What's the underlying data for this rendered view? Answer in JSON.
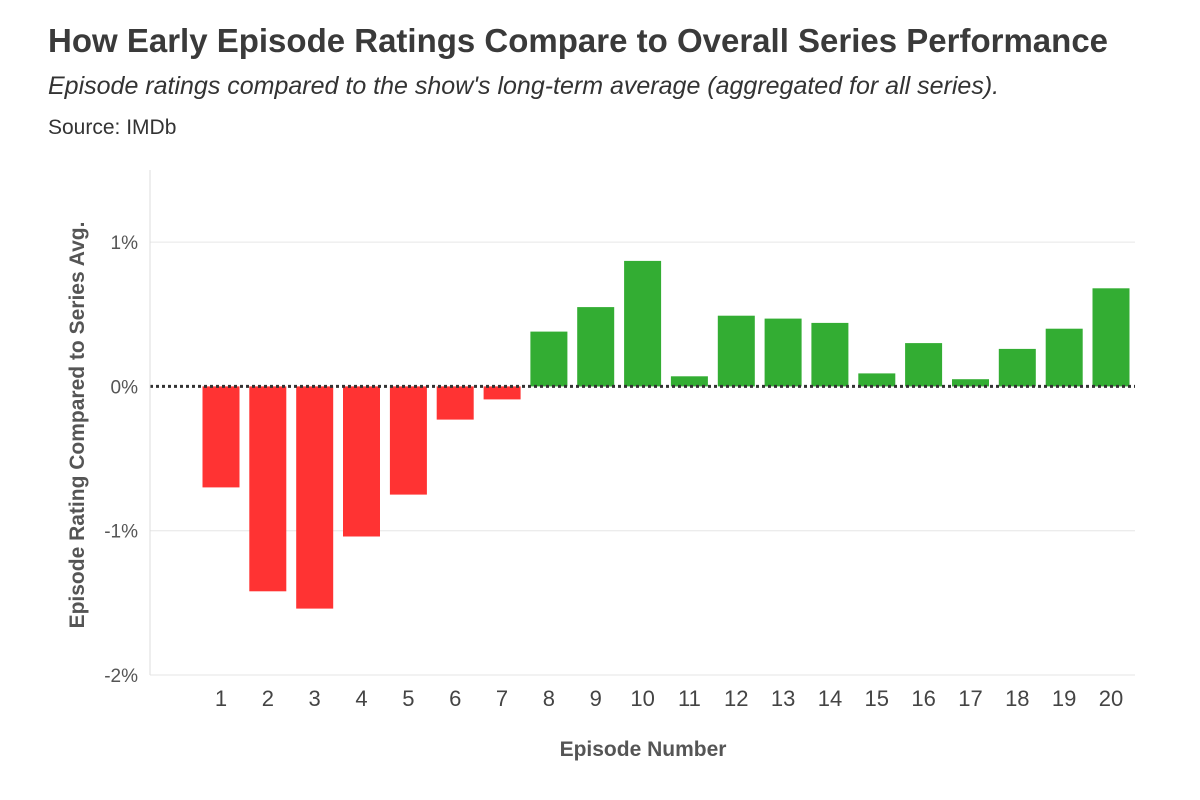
{
  "title": "How Early Episode Ratings Compare to Overall Series Performance",
  "subtitle": "Episode ratings compared to the show's long-term average (aggregated for all series).",
  "source": "Source: IMDb",
  "colors": {
    "negative": "#ff3333",
    "positive": "#33ad33",
    "grid": "#e6e6e6",
    "zero_line": "#333333"
  },
  "chart_data": {
    "type": "bar",
    "title": "How Early Episode Ratings Compare to Overall Series Performance",
    "subtitle": "Episode ratings compared to the show's long-term average (aggregated for all series).",
    "xlabel": "Episode Number",
    "ylabel": "Episode Rating Compared to Series Avg.",
    "categories": [
      "1",
      "2",
      "3",
      "4",
      "5",
      "6",
      "7",
      "8",
      "9",
      "10",
      "11",
      "12",
      "13",
      "14",
      "15",
      "16",
      "17",
      "18",
      "19",
      "20"
    ],
    "values": [
      -0.7,
      -1.42,
      -1.54,
      -1.04,
      -0.75,
      -0.23,
      -0.09,
      0.38,
      0.55,
      0.87,
      0.07,
      0.49,
      0.47,
      0.44,
      0.09,
      0.3,
      0.05,
      0.26,
      0.4,
      0.68
    ],
    "ylim": [
      -2,
      1.5
    ],
    "yticks": [
      1,
      0,
      -1,
      -2
    ],
    "ytick_labels": [
      "1%",
      "0%",
      "-1%",
      "-2%"
    ],
    "grid": true,
    "legend": "none"
  }
}
